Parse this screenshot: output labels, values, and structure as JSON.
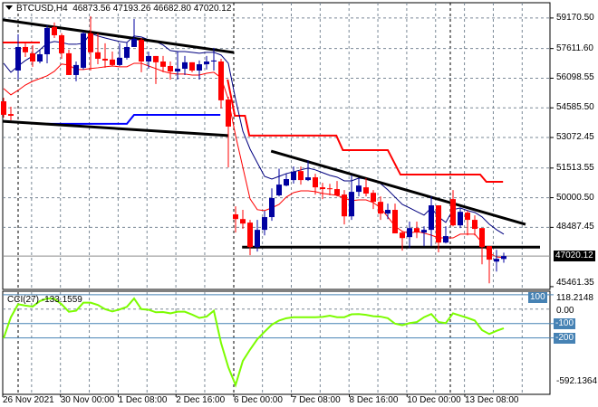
{
  "header": {
    "symbol": "BTCUSD,H4",
    "ohlc_text": "46873.56 47193.26 46682.80 47020.12"
  },
  "colors": {
    "bull": "#0000a0",
    "bear": "#ff0000",
    "cci": "#7cfc00",
    "level": "#4682b4",
    "grid": "#7a8896",
    "ma_fast": "#000080",
    "ma_slow": "#ff0000",
    "trendline": "#000000"
  },
  "chart_data": [
    {
      "type": "candlestick",
      "title": "BTCUSD,H4",
      "ylim": [
        45320,
        59950
      ],
      "grid": true,
      "price_axis_labels": [
        "59170.50",
        "57611.60",
        "56098.55",
        "54585.50",
        "53072.45",
        "51513.55",
        "50000.50",
        "48487.45",
        "45461.35"
      ],
      "price_axis_values": [
        59170.5,
        57611.6,
        56098.55,
        54585.5,
        53072.45,
        51513.55,
        50000.5,
        48487.45,
        45461.35
      ],
      "current_price_label": "47020.12",
      "current_price": 47020.12,
      "time_labels": [
        "26 Nov 2021",
        "30 Nov 00:00",
        "1 Dec 08:00",
        "2 Dec 16:00",
        "6 Dec 00:00",
        "7 Dec 08:00",
        "8 Dec 16:00",
        "10 Dec 00:00",
        "13 Dec 08:00"
      ],
      "candles": [
        [
          54920,
          55100,
          54090,
          54230
        ],
        [
          54270,
          54640,
          53950,
          54180
        ],
        [
          56490,
          58340,
          56030,
          57690
        ],
        [
          57690,
          57880,
          57180,
          57420
        ],
        [
          57370,
          57780,
          56680,
          56950
        ],
        [
          56950,
          57550,
          56860,
          57320
        ],
        [
          57320,
          58800,
          56860,
          58660
        ],
        [
          58710,
          58940,
          58150,
          58290
        ],
        [
          58290,
          58390,
          57090,
          57370
        ],
        [
          57370,
          57550,
          56260,
          56260
        ],
        [
          56260,
          56950,
          55940,
          56770
        ],
        [
          56630,
          58480,
          56540,
          58390
        ],
        [
          58390,
          59260,
          56490,
          57420
        ],
        [
          57420,
          58390,
          56810,
          57090
        ],
        [
          57090,
          57880,
          56630,
          57000
        ],
        [
          57050,
          57460,
          56720,
          56770
        ],
        [
          56770,
          57880,
          56720,
          57140
        ],
        [
          57140,
          57920,
          57050,
          57690
        ],
        [
          57690,
          59120,
          57690,
          58110
        ],
        [
          58060,
          58150,
          56400,
          56950
        ],
        [
          56950,
          57460,
          56580,
          57230
        ],
        [
          57230,
          57230,
          55800,
          56910
        ],
        [
          56950,
          57230,
          56400,
          56680
        ],
        [
          56720,
          56950,
          56030,
          56440
        ],
        [
          56440,
          57460,
          56030,
          56580
        ],
        [
          56580,
          57230,
          56260,
          56910
        ],
        [
          56910,
          56910,
          56400,
          56490
        ],
        [
          56490,
          57000,
          56030,
          56810
        ],
        [
          56810,
          57230,
          56540,
          56950
        ],
        [
          56950,
          57650,
          56490,
          57000
        ],
        [
          56950,
          57090,
          54550,
          54970
        ],
        [
          55010,
          55150,
          51550,
          53630
        ],
        [
          49150,
          49560,
          48220,
          48910
        ],
        [
          48910,
          49380,
          48410,
          48680
        ],
        [
          48730,
          48870,
          47070,
          47480
        ],
        [
          47480,
          48870,
          47250,
          48360
        ],
        [
          48360,
          49330,
          48080,
          49010
        ],
        [
          49010,
          50480,
          48820,
          49980
        ],
        [
          50120,
          51480,
          50070,
          50670
        ],
        [
          50620,
          51220,
          50580,
          50950
        ],
        [
          50900,
          51590,
          50720,
          51320
        ],
        [
          51360,
          51590,
          50670,
          50900
        ],
        [
          50900,
          51910,
          50850,
          51040
        ],
        [
          51040,
          51220,
          50160,
          50530
        ],
        [
          50530,
          50760,
          49930,
          50440
        ],
        [
          50480,
          50710,
          50120,
          50440
        ],
        [
          50440,
          50850,
          50070,
          50120
        ],
        [
          50160,
          50390,
          48640,
          49050
        ],
        [
          49050,
          51130,
          48870,
          50300
        ],
        [
          50300,
          50990,
          50070,
          50620
        ],
        [
          50530,
          50990,
          50070,
          50210
        ],
        [
          50250,
          50390,
          49420,
          49790
        ],
        [
          49790,
          50070,
          48870,
          49190
        ],
        [
          49190,
          49700,
          48910,
          49380
        ],
        [
          49380,
          49700,
          48180,
          48180
        ],
        [
          48220,
          48310,
          47300,
          47940
        ],
        [
          47990,
          48780,
          47430,
          48450
        ],
        [
          48450,
          48780,
          47940,
          48220
        ],
        [
          48220,
          48540,
          47530,
          48360
        ],
        [
          48360,
          50070,
          47530,
          49610
        ],
        [
          49610,
          49610,
          47210,
          47710
        ],
        [
          47710,
          48540,
          47670,
          48040
        ],
        [
          49930,
          50390,
          48540,
          48590
        ],
        [
          48590,
          49470,
          48450,
          49280
        ],
        [
          49240,
          49330,
          48080,
          48870
        ],
        [
          48870,
          49100,
          48080,
          48410
        ],
        [
          48450,
          48450,
          46600,
          47480
        ],
        [
          47530,
          47530,
          45630,
          46840
        ],
        [
          46740,
          47340,
          46230,
          46880
        ],
        [
          46873.56,
          47193.26,
          46682.8,
          47020.12
        ]
      ],
      "ma_fast": [
        56860,
        56400,
        56720,
        57000,
        57230,
        57550,
        57880,
        57970,
        57920,
        57830,
        57830,
        57880,
        58390,
        58250,
        58150,
        58060,
        57970,
        57920,
        58250,
        58200,
        58060,
        57970,
        57790,
        57510,
        57460,
        57460,
        57420,
        57370,
        57420,
        57420,
        57280,
        56860,
        55020,
        53400,
        52480,
        51780,
        51090,
        50950,
        51090,
        51230,
        51320,
        51420,
        51510,
        51420,
        51280,
        51140,
        51050,
        50860,
        50860,
        51000,
        50950,
        50860,
        50720,
        50400,
        50030,
        49660,
        49480,
        49290,
        49110,
        49480,
        49020,
        48740,
        49390,
        49480,
        49340,
        49250,
        49020,
        48650,
        48370,
        48140
      ],
      "ma_slow": [
        55570,
        55250,
        55480,
        55750,
        55940,
        56080,
        56220,
        56450,
        56820,
        56770,
        56540,
        56540,
        56590,
        56630,
        56680,
        56720,
        56680,
        56680,
        56860,
        56860,
        56720,
        56590,
        56450,
        56350,
        56310,
        56310,
        56260,
        56260,
        56350,
        56400,
        56120,
        55020,
        53170,
        51550,
        49940,
        49390,
        49340,
        49480,
        49660,
        50030,
        50260,
        50350,
        50350,
        50310,
        50220,
        50170,
        50120,
        49980,
        49850,
        49890,
        49890,
        49750,
        49480,
        49020,
        48550,
        48280,
        48190,
        48280,
        48190,
        48090,
        47950,
        47950,
        47950,
        48140,
        48140,
        48140,
        47720,
        47170,
        46980,
        46940
      ],
      "trendlines": [
        {
          "color": "#000000",
          "points": [
            [
              -0.1,
              59080
            ],
            [
              31.75,
              57410
            ]
          ]
        },
        {
          "color": "#000000",
          "points": [
            [
              -0.1,
              53900
            ],
            [
              31,
              53170
            ]
          ]
        },
        {
          "color": "#000000",
          "points": [
            [
              36.9,
              52380
            ],
            [
              72,
              48640
            ]
          ]
        },
        {
          "color": "#000000",
          "points": [
            [
              32.9,
              47480
            ],
            [
              74,
              47480
            ]
          ]
        }
      ],
      "step_lines": [
        {
          "color": "#ff0000",
          "points": [
            [
              -0.1,
              57920
            ],
            [
              5,
              57920
            ]
          ]
        },
        {
          "color": "#ff0000",
          "points": [
            [
              30.9,
              56030
            ],
            [
              31.9,
              54180
            ],
            [
              33.3,
              54180
            ],
            [
              33.9,
              53170
            ],
            [
              45.9,
              53170
            ],
            [
              46.8,
              52430
            ],
            [
              53,
              52430
            ],
            [
              54.75,
              51180
            ],
            [
              65.75,
              51180
            ],
            [
              66.6,
              50810
            ],
            [
              68.9,
              50810
            ]
          ]
        },
        {
          "color": "#0000ff",
          "points": [
            [
              6,
              53770
            ],
            [
              17,
              53770
            ],
            [
              18,
              54230
            ],
            [
              29.9,
              54230
            ]
          ]
        }
      ]
    },
    {
      "type": "line",
      "title": "CCI(27) -133.1559",
      "ylim": [
        -592.1364,
        118.2148
      ],
      "axis_labels": [
        "118.2148",
        "0.00",
        "-592.1364"
      ],
      "levels": [
        100,
        -100,
        -200
      ],
      "level_labels": [
        "100",
        "-100",
        "-200"
      ],
      "values": [
        -202,
        -56,
        34,
        25,
        18,
        56,
        74,
        72,
        34,
        -18,
        -11,
        45,
        45,
        29,
        0,
        -16,
        -2,
        16,
        74,
        0,
        -4,
        -22,
        -20,
        -29,
        -18,
        -18,
        -38,
        -61,
        -52,
        -11,
        -236,
        -404,
        -528,
        -360,
        -281,
        -209,
        -157,
        -108,
        -79,
        -63,
        -56,
        -56,
        -56,
        -56,
        -54,
        -45,
        -56,
        -56,
        -36,
        -34,
        -40,
        -49,
        -52,
        -63,
        -101,
        -112,
        -97,
        -90,
        -56,
        -34,
        -90,
        -97,
        -29,
        -45,
        -61,
        -79,
        -146,
        -173,
        -151,
        -133
      ]
    }
  ]
}
